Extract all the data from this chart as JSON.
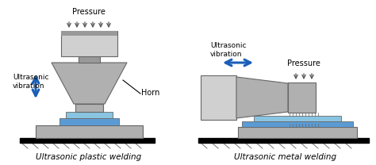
{
  "background_color": "#ffffff",
  "gray_dark": "#666666",
  "gray_fill": "#b0b0b0",
  "gray_light": "#d0d0d0",
  "gray_mid": "#999999",
  "blue_part": "#5b9bd5",
  "blue_part2": "#89c4e1",
  "blue_arrow": "#1a5eb8",
  "black": "#000000",
  "label_left": "Ultrasonic\nvibration",
  "label_pressure_left": "Pressure",
  "label_horn": "Horn",
  "label_bottom_left": "Ultrasonic plastic welding",
  "label_ultrasonic_right": "Ultrasonic\nvibration",
  "label_pressure_right": "Pressure",
  "label_bottom_right": "Ultrasonic metal welding"
}
